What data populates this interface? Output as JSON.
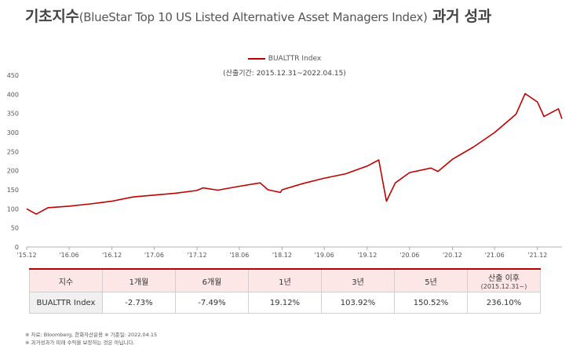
{
  "title": {
    "main": "기초지수",
    "paren": "(BlueStar Top 10 US Listed Alternative Asset Managers Index)",
    "suffix": "과거 성과"
  },
  "legend": {
    "series_name": "BUALTTR Index",
    "color": "#c00000"
  },
  "period": "(산출기간: 2015.12.31~2022.04.15)",
  "chart_data": {
    "type": "line",
    "title": "",
    "xlabel": "",
    "ylabel": "",
    "ylim": [
      0,
      450
    ],
    "yticks": [
      0,
      50,
      100,
      150,
      200,
      250,
      300,
      350,
      400,
      450
    ],
    "xticks": [
      "'15.12",
      "'16.06",
      "'16.12",
      "'17.06",
      "'17.12",
      "'18.06",
      "'18.12",
      "'19.06",
      "'19.12",
      "'20.06",
      "'20.12",
      "'21.06",
      "'21.12"
    ],
    "grid": false,
    "legend_position": "top-center",
    "series": [
      {
        "name": "BUALTTR Index",
        "color": "#c00000",
        "x": [
          "2015-12-31",
          "2016-02-10",
          "2016-03-31",
          "2016-06-30",
          "2016-09-30",
          "2016-12-30",
          "2017-03-31",
          "2017-06-30",
          "2017-09-29",
          "2017-12-29",
          "2018-01-26",
          "2018-03-30",
          "2018-06-29",
          "2018-09-28",
          "2018-10-31",
          "2018-12-24",
          "2018-12-31",
          "2019-03-29",
          "2019-06-28",
          "2019-09-30",
          "2019-12-31",
          "2020-02-19",
          "2020-03-23",
          "2020-04-30",
          "2020-06-30",
          "2020-09-30",
          "2020-10-30",
          "2020-12-31",
          "2021-03-31",
          "2021-06-30",
          "2021-09-30",
          "2021-11-08",
          "2021-12-31",
          "2022-01-28",
          "2022-03-31",
          "2022-04-15"
        ],
        "values": [
          100,
          86,
          103,
          107,
          113,
          120,
          131,
          136,
          141,
          148,
          155,
          149,
          159,
          168,
          150,
          143,
          150,
          166,
          180,
          192,
          212,
          228,
          120,
          168,
          195,
          207,
          198,
          230,
          262,
          300,
          348,
          402,
          380,
          342,
          362,
          336
        ]
      }
    ]
  },
  "table": {
    "headers": [
      "지수",
      "1개월",
      "6개월",
      "1년",
      "3년",
      "5년",
      "산출 이후"
    ],
    "header_sub": "(2015.12.31~)",
    "row": [
      "BUALTTR Index",
      "-2.73%",
      "-7.49%",
      "19.12%",
      "103.92%",
      "150.52%",
      "236.10%"
    ]
  },
  "notes": [
    "※ 자료: Bloomberg, 한화자산운용 ※ 기준일: 2022.04.15",
    "※ 과거성과가 미래 수익을 보장하는 것은 아닙니다."
  ]
}
